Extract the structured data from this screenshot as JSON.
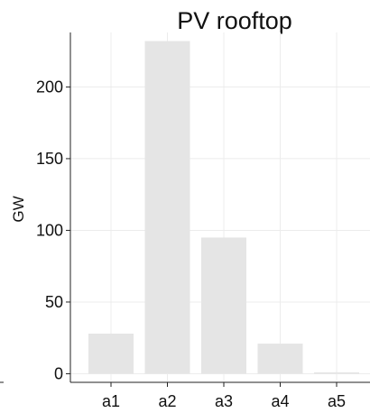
{
  "chart_data": {
    "type": "bar",
    "title": "PV rooftop",
    "xlabel": "",
    "ylabel": "GW",
    "categories": [
      "a1",
      "a2",
      "a3",
      "a4",
      "a5"
    ],
    "values": [
      28,
      232,
      95,
      21,
      1
    ],
    "ylim": [
      -6,
      238
    ],
    "yticks": [
      0,
      50,
      100,
      150,
      200
    ],
    "ytick_labels": [
      "0",
      "50",
      "100",
      "150",
      "200"
    ],
    "grid": true,
    "bar_color": "#e5e5e5"
  }
}
